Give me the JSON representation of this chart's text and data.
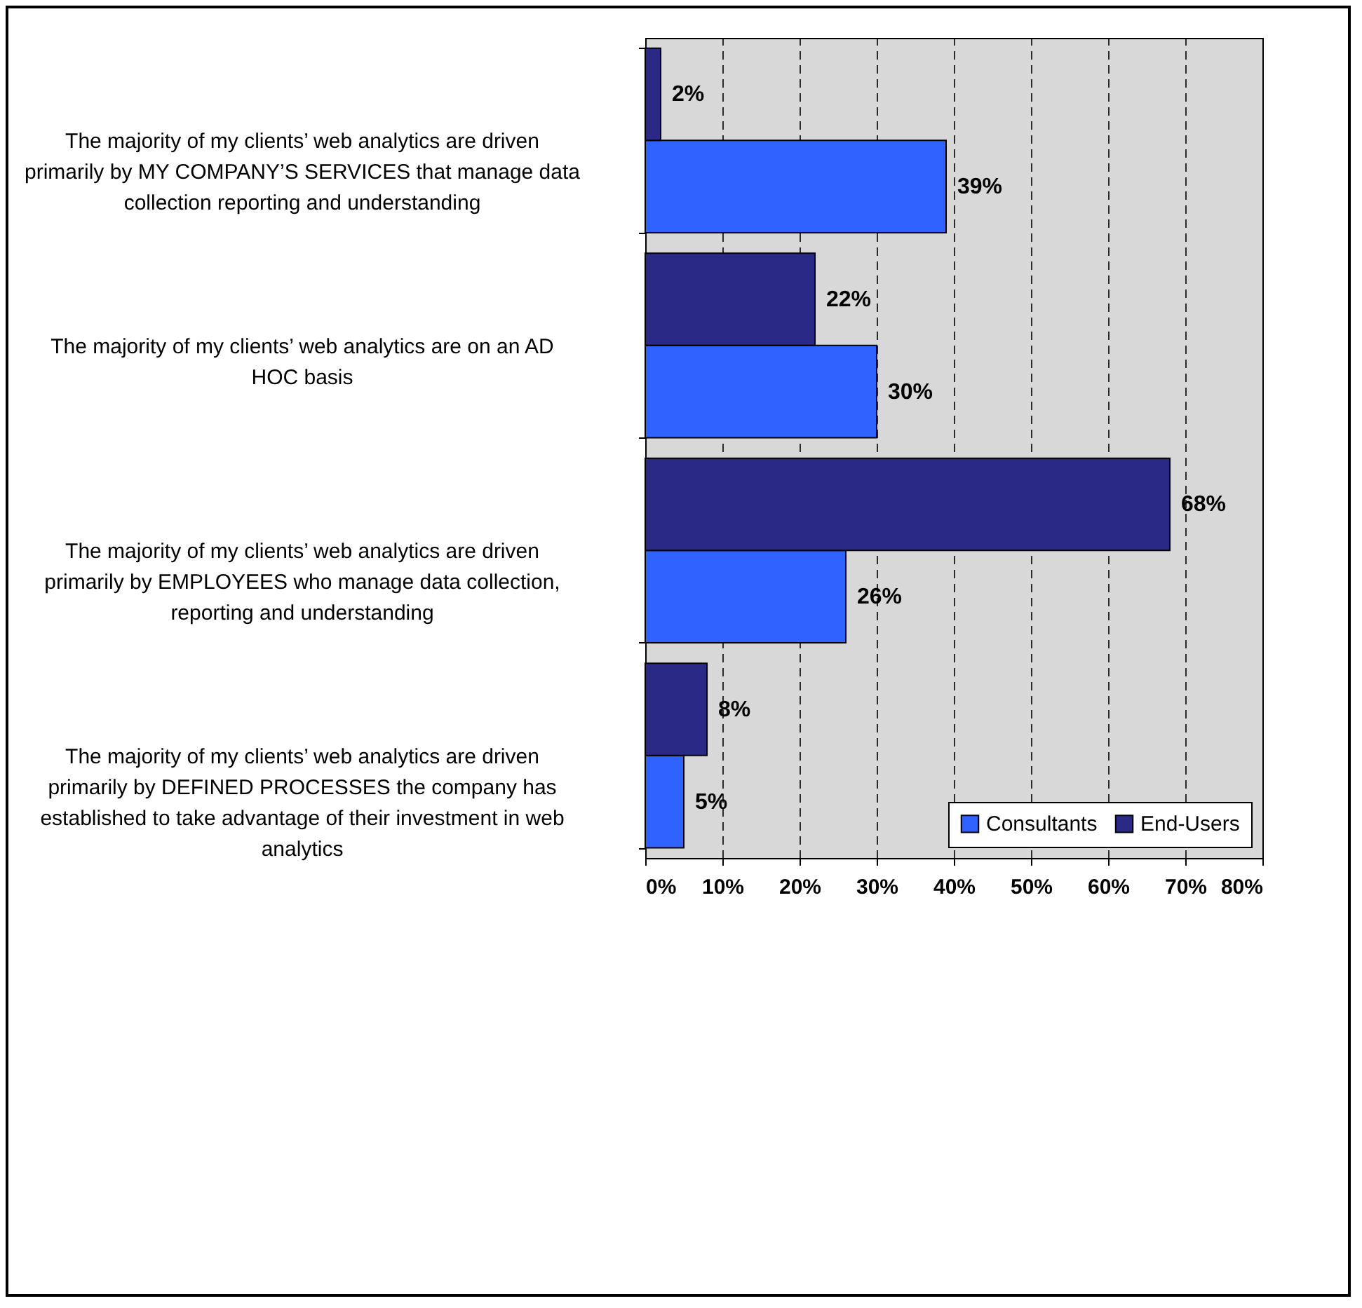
{
  "chart_data": {
    "type": "bar",
    "orientation": "horizontal",
    "categories": [
      "The majority of my clients’ web analytics are driven primarily by MY COMPANY’S SERVICES that manage data collection reporting and understanding",
      "The majority of my clients’ web analytics are on an AD HOC basis",
      "The majority of my clients’ web analytics are driven primarily by EMPLOYEES who manage data collection, reporting and understanding",
      "The majority of my clients’ web analytics are driven primarily by DEFINED PROCESSES the company has established to take advantage of their investment in web analytics"
    ],
    "series": [
      {
        "name": "Consultants",
        "color": "#2f62ff",
        "values": [
          39,
          30,
          26,
          5
        ],
        "value_labels": [
          "39%",
          "30%",
          "26%",
          "5%"
        ]
      },
      {
        "name": "End-Users",
        "color": "#2a2a86",
        "values": [
          2,
          22,
          68,
          8
        ],
        "value_labels": [
          "2%",
          "22%",
          "68%",
          "8%"
        ]
      }
    ],
    "xlim": [
      0,
      80
    ],
    "xticks": [
      {
        "value": 0,
        "label": "0%"
      },
      {
        "value": 10,
        "label": "10%"
      },
      {
        "value": 20,
        "label": "20%"
      },
      {
        "value": 30,
        "label": "30%"
      },
      {
        "value": 40,
        "label": "40%"
      },
      {
        "value": 50,
        "label": "50%"
      },
      {
        "value": 60,
        "label": "60%"
      },
      {
        "value": 70,
        "label": "70%"
      },
      {
        "value": 80,
        "label": "80%"
      }
    ],
    "grid": "x",
    "legend": "bottom right"
  }
}
